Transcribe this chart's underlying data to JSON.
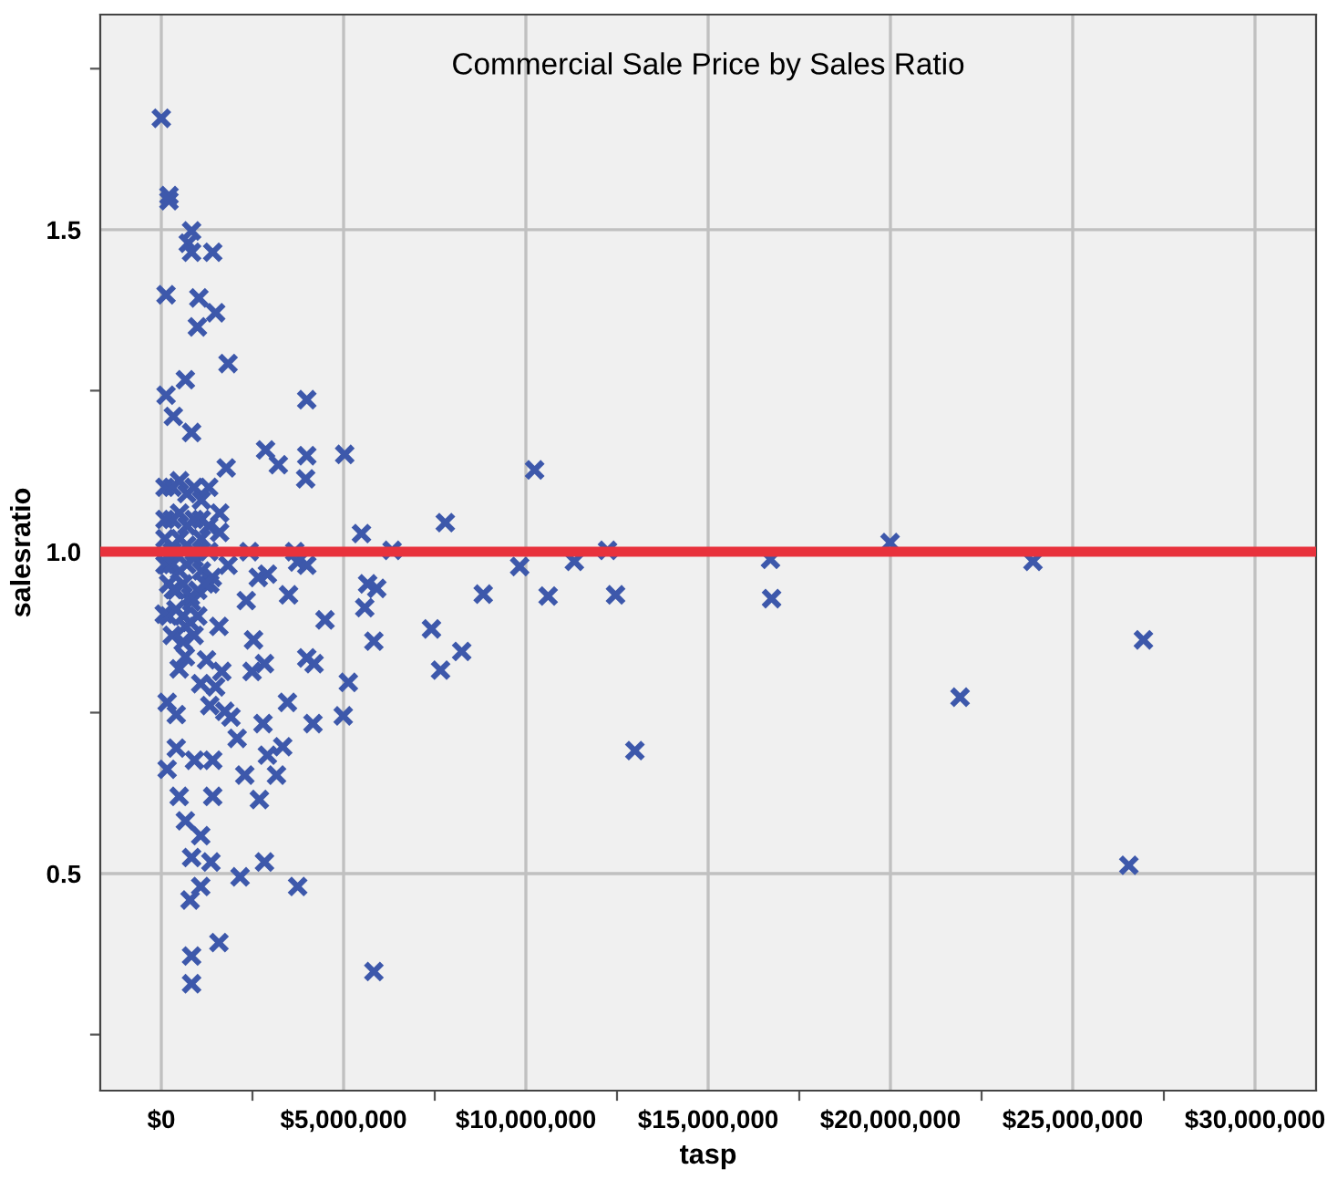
{
  "chart_data": {
    "type": "scatter",
    "title": "Commercial Sale Price by Sales Ratio",
    "xlabel": "tasp",
    "ylabel": "salesratio",
    "xlim": [
      -1675000,
      31675000
    ],
    "ylim": [
      0.163,
      1.834
    ],
    "xticks": [
      {
        "value": 0,
        "label": "$0"
      },
      {
        "value": 2500000,
        "label": null
      },
      {
        "value": 5000000,
        "label": "$5,000,000"
      },
      {
        "value": 7500000,
        "label": null
      },
      {
        "value": 10000000,
        "label": "$10,000,000"
      },
      {
        "value": 12500000,
        "label": null
      },
      {
        "value": 15000000,
        "label": "$15,000,000"
      },
      {
        "value": 17500000,
        "label": null
      },
      {
        "value": 20000000,
        "label": "$20,000,000"
      },
      {
        "value": 22500000,
        "label": null
      },
      {
        "value": 25000000,
        "label": "$25,000,000"
      },
      {
        "value": 27500000,
        "label": null
      },
      {
        "value": 30000000,
        "label": "$30,000,000"
      }
    ],
    "yticks": [
      {
        "value": 0.25,
        "label": null
      },
      0.5,
      {
        "value": 0.75,
        "label": null
      },
      {
        "value": 1.0,
        "label": "1.0"
      },
      {
        "value": 1.25,
        "label": null
      },
      1.5,
      {
        "value": 1.75,
        "label": null
      }
    ],
    "grid": true,
    "marker": "cross",
    "ref_lines": [
      {
        "axis": "y",
        "value": 1.0,
        "color": "#e8323c"
      }
    ],
    "series": [
      {
        "color": "#3d58ab",
        "x": [
          0,
          210000,
          210000,
          830000,
          740000,
          830000,
          1410000,
          130000,
          1030000,
          1490000,
          990000,
          1830000,
          130000,
          660000,
          330000,
          830000,
          3990000,
          2860000,
          3210000,
          3990000,
          3960000,
          5030000,
          1780000,
          5490000,
          7790000,
          6330000,
          3660000,
          2410000,
          10240000,
          9830000,
          8830000,
          11330000,
          10610000,
          12240000,
          12460000,
          12990000,
          16710000,
          16740000,
          19990000,
          23910000,
          21910000,
          26940000,
          26540000,
          8240000,
          7660000,
          5660000,
          5910000,
          5580000,
          5830000,
          7410000,
          5830000,
          4490000,
          3490000,
          2910000,
          2660000,
          3990000,
          3740000,
          2330000,
          2530000,
          2830000,
          2490000,
          3990000,
          4190000,
          5130000,
          4990000,
          3460000,
          4160000,
          2790000,
          3330000,
          2910000,
          2290000,
          3160000,
          2690000,
          2830000,
          2160000,
          3740000,
          1360000,
          1080000,
          790000,
          1580000,
          830000,
          830000,
          160000,
          410000,
          910000,
          1410000,
          490000,
          1410000,
          660000,
          1080000,
          830000,
          1910000,
          2080000,
          1740000,
          160000,
          410000,
          1330000,
          490000,
          1660000,
          1080000,
          1490000,
          660000,
          1240000,
          1580000,
          80000,
          830000,
          330000,
          1330000,
          160000,
          1830000,
          660000,
          100000,
          300000,
          500000,
          700000,
          900000,
          1100000,
          1300000,
          1600000,
          100000,
          300000,
          500000,
          700000,
          900000,
          1100000,
          1300000,
          1600000,
          100000,
          300000,
          500000,
          700000,
          900000,
          1100000,
          1300000,
          100000,
          300000,
          500000,
          700000,
          900000,
          1100000,
          1400000,
          200000,
          400000,
          600000,
          800000,
          1000000,
          1200000,
          200000,
          400000,
          600000,
          800000,
          1000000,
          300000,
          600000,
          900000
        ],
        "values": [
          1.673,
          1.553,
          1.545,
          1.498,
          1.479,
          1.465,
          1.465,
          1.399,
          1.394,
          1.371,
          1.349,
          1.292,
          1.243,
          1.267,
          1.21,
          1.185,
          1.236,
          1.158,
          1.135,
          1.149,
          1.113,
          1.151,
          1.13,
          1.028,
          1.045,
          1.002,
          1.0,
          1.0,
          1.127,
          0.977,
          0.934,
          0.985,
          0.931,
          1.002,
          0.933,
          0.691,
          0.988,
          0.927,
          1.014,
          0.985,
          0.774,
          0.863,
          0.513,
          0.845,
          0.816,
          0.95,
          0.943,
          0.913,
          0.861,
          0.88,
          0.348,
          0.894,
          0.933,
          0.965,
          0.96,
          0.979,
          0.984,
          0.924,
          0.863,
          0.826,
          0.814,
          0.835,
          0.826,
          0.797,
          0.745,
          0.766,
          0.733,
          0.733,
          0.697,
          0.684,
          0.653,
          0.653,
          0.615,
          0.518,
          0.495,
          0.48,
          0.518,
          0.48,
          0.459,
          0.393,
          0.372,
          0.329,
          0.662,
          0.695,
          0.676,
          0.676,
          0.62,
          0.62,
          0.582,
          0.559,
          0.525,
          0.743,
          0.71,
          0.752,
          0.766,
          0.747,
          0.761,
          0.818,
          0.814,
          0.795,
          0.79,
          0.837,
          0.832,
          0.884,
          0.903,
          0.922,
          0.941,
          0.95,
          0.979,
          0.979,
          0.884,
          1.1,
          1.1,
          1.11,
          1.09,
          1.1,
          1.08,
          1.1,
          1.06,
          1.05,
          1.05,
          1.06,
          1.04,
          1.05,
          1.05,
          1.04,
          1.03,
          1.02,
          1.0,
          1.02,
          1.01,
          1.0,
          1.02,
          1.0,
          0.98,
          0.98,
          0.97,
          0.98,
          0.99,
          0.97,
          0.96,
          0.95,
          0.94,
          0.95,
          0.93,
          0.94,
          0.95,
          0.9,
          0.91,
          0.9,
          0.89,
          0.9,
          0.87,
          0.86,
          0.87
        ]
      }
    ]
  }
}
